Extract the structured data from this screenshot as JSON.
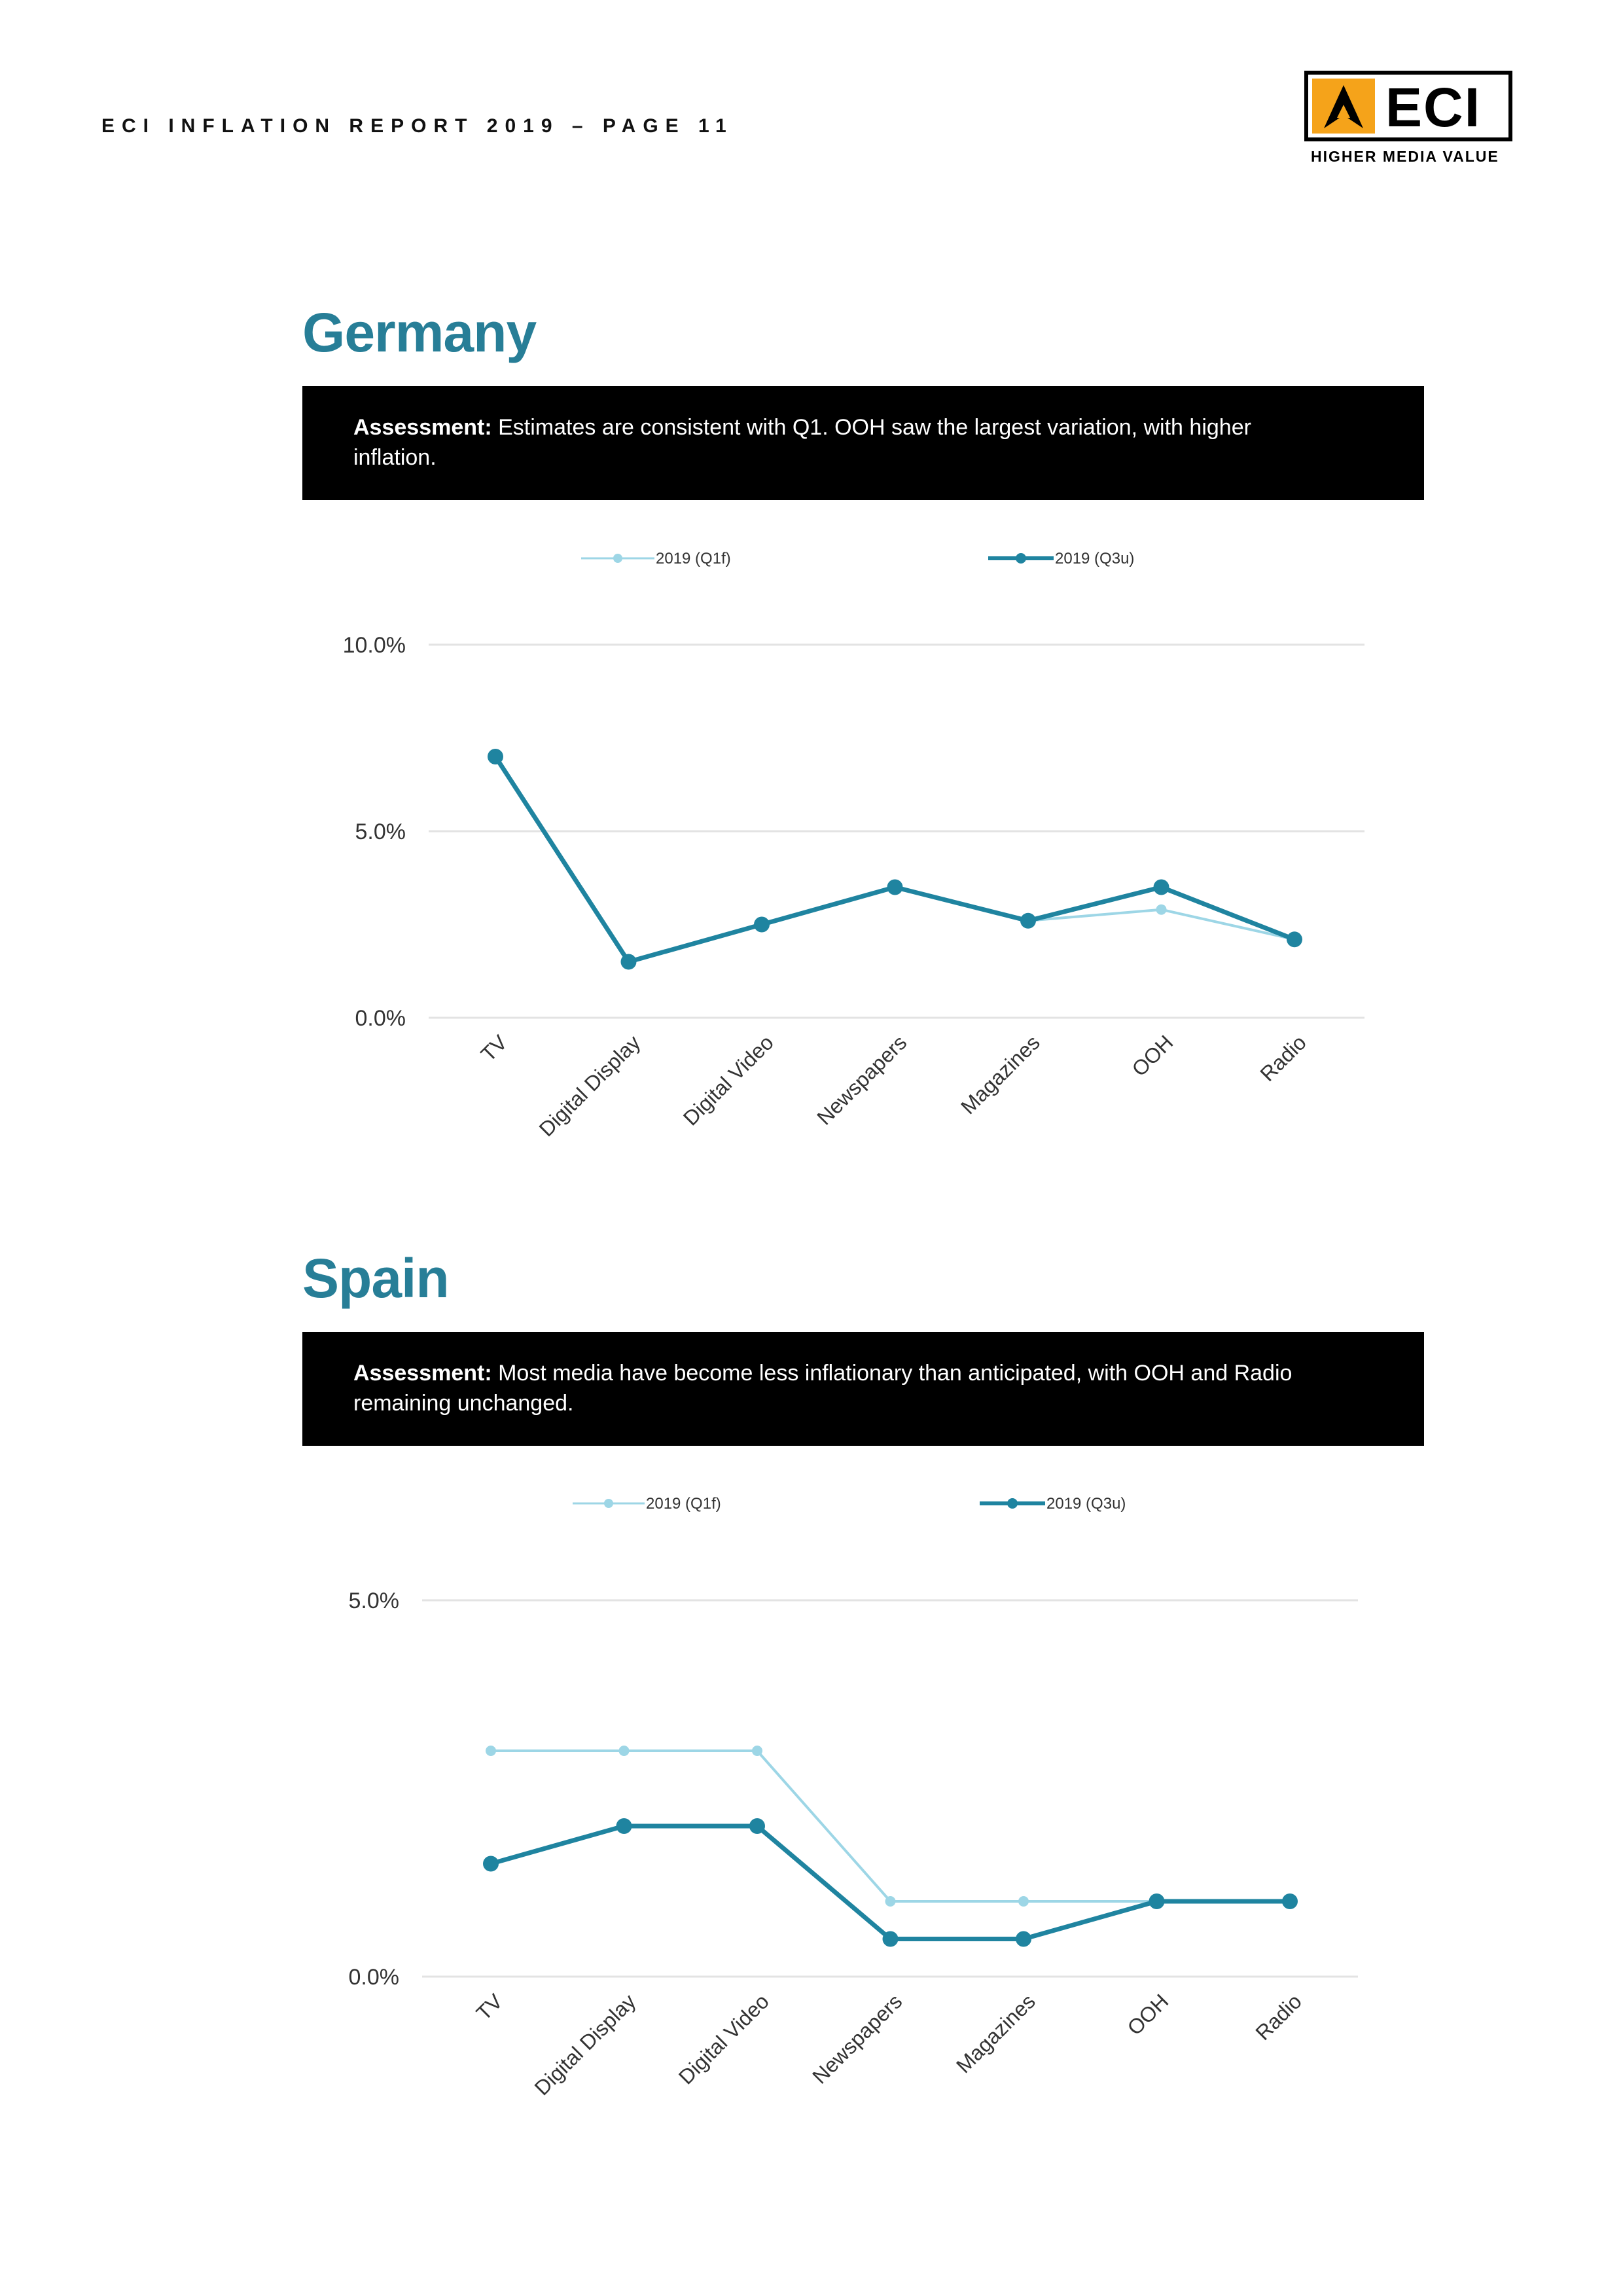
{
  "header": {
    "text": "ECI INFLATION REPORT 2019 – PAGE 11"
  },
  "logo": {
    "word": "ECI",
    "tagline": "HIGHER MEDIA VALUE",
    "accent_color": "#f5a31a",
    "icon": "arrow-triangle-icon"
  },
  "sections": [
    {
      "title": "Germany",
      "assessment_label": "Assessment:",
      "assessment_text": "Estimates are consistent with Q1. OOH saw the largest variation, with higher inflation."
    },
    {
      "title": "Spain",
      "assessment_label": "Assessment:",
      "assessment_text": "Most media have become less inflationary than anticipated, with OOH and Radio remaining unchanged."
    }
  ],
  "chart_data": [
    {
      "type": "line",
      "title": "Germany",
      "categories": [
        "TV",
        "Digital Display",
        "Digital Video",
        "Newspapers",
        "Magazines",
        "OOH",
        "Radio"
      ],
      "series": [
        {
          "name": "2019 (Q1f)",
          "color": "#9dd6e6",
          "values": [
            7.0,
            1.5,
            2.5,
            3.5,
            2.6,
            2.9,
            2.1
          ]
        },
        {
          "name": "2019 (Q3u)",
          "color": "#1f84a0",
          "values": [
            7.0,
            1.5,
            2.5,
            3.5,
            2.6,
            3.5,
            2.1
          ]
        }
      ],
      "yticks": [
        "0.0%",
        "5.0%",
        "10.0%"
      ],
      "ytick_values": [
        0,
        5,
        10
      ],
      "ylim": [
        0,
        10
      ],
      "grid": true,
      "legend": "top"
    },
    {
      "type": "line",
      "title": "Spain",
      "categories": [
        "TV",
        "Digital Display",
        "Digital Video",
        "Newspapers",
        "Magazines",
        "OOH",
        "Radio"
      ],
      "series": [
        {
          "name": "2019 (Q1f)",
          "color": "#9dd6e6",
          "values": [
            3.0,
            3.0,
            3.0,
            1.0,
            1.0,
            1.0,
            1.0
          ]
        },
        {
          "name": "2019 (Q3u)",
          "color": "#1f84a0",
          "values": [
            1.5,
            2.0,
            2.0,
            0.5,
            0.5,
            1.0,
            1.0
          ]
        }
      ],
      "yticks": [
        "0.0%",
        "5.0%"
      ],
      "ytick_values": [
        0,
        5
      ],
      "ylim": [
        0,
        5
      ],
      "grid": true,
      "legend": "top"
    }
  ]
}
